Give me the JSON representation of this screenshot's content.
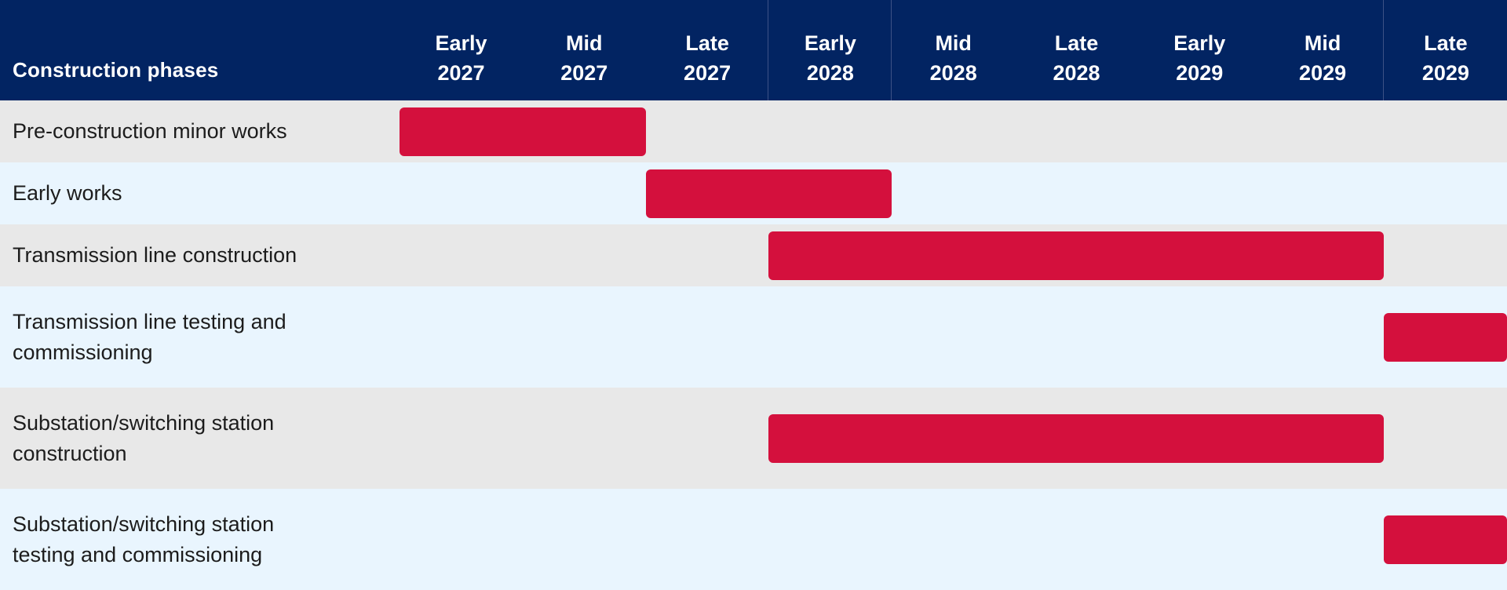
{
  "header": {
    "title": "Construction phases"
  },
  "colors": {
    "header_bg": "#022462",
    "bar": "#d4103d",
    "row_odd": "#e8e8e8",
    "row_even": "#e9f5fe"
  },
  "chart_data": {
    "type": "gantt",
    "title": "",
    "columns": [
      {
        "top": "Early",
        "bottom": "2027"
      },
      {
        "top": "Mid",
        "bottom": "2027"
      },
      {
        "top": "Late",
        "bottom": "2027"
      },
      {
        "top": "Early",
        "bottom": "2028"
      },
      {
        "top": "Mid",
        "bottom": "2028"
      },
      {
        "top": "Late",
        "bottom": "2028"
      },
      {
        "top": "Early",
        "bottom": "2029"
      },
      {
        "top": "Mid",
        "bottom": "2029"
      },
      {
        "top": "Late",
        "bottom": "2029"
      }
    ],
    "tasks": [
      {
        "name": "Pre-construction minor works",
        "start": "Early 2027",
        "end": "Mid 2027"
      },
      {
        "name": "Early works",
        "start": "Late 2027",
        "end": "Early 2028"
      },
      {
        "name": "Transmission line construction",
        "start": "Early 2028",
        "end": "Mid 2029"
      },
      {
        "name": "Transmission line testing and commissioning",
        "start": "Late 2029",
        "end": "Late 2029"
      },
      {
        "name": "Substation/switching station construction",
        "start": "Early 2028",
        "end": "Mid 2029"
      },
      {
        "name": "Substation/switching station testing and commissioning",
        "start": "Late 2029",
        "end": "Late 2029"
      }
    ]
  }
}
